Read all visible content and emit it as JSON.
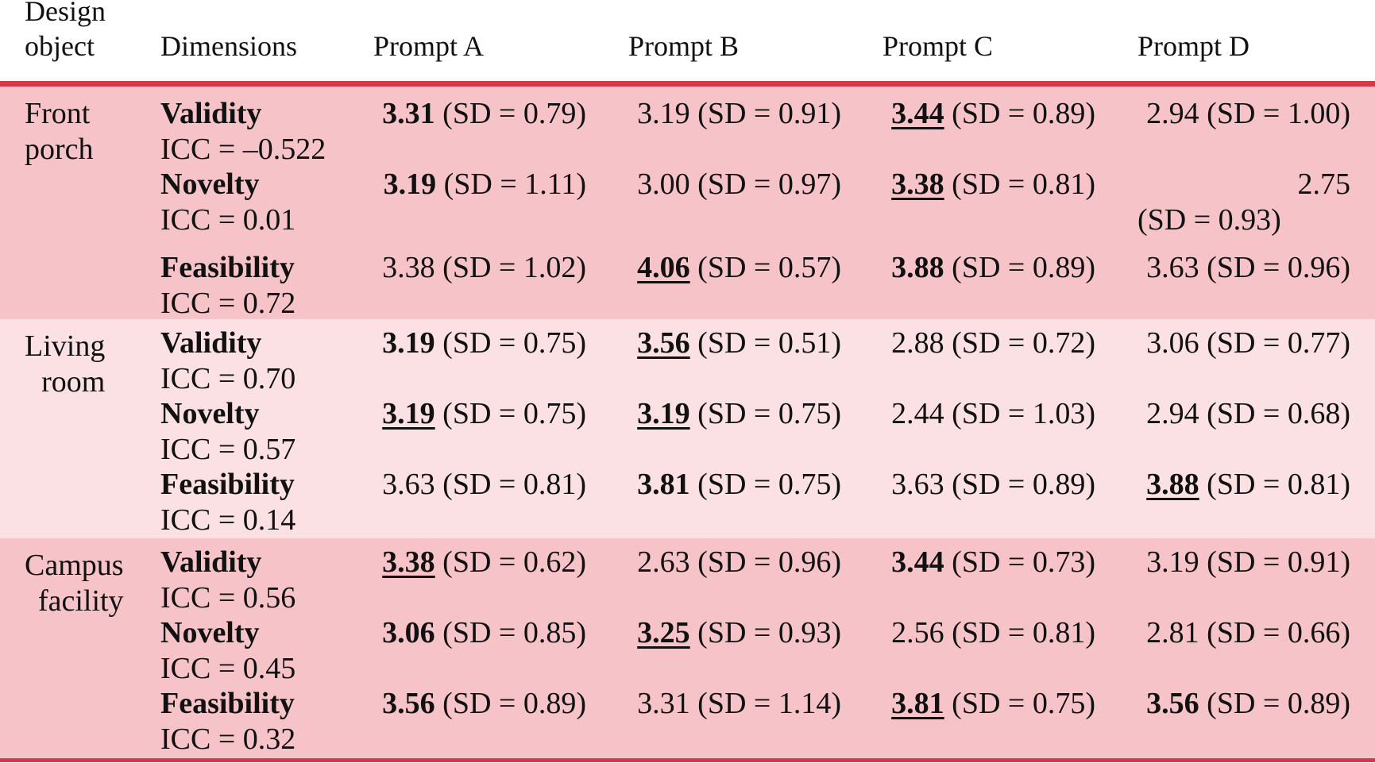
{
  "header": {
    "design_object": "Design\nobject",
    "dimensions": "Dimensions",
    "prompt_a": "Prompt A",
    "prompt_b": "Prompt B",
    "prompt_c": "Prompt C",
    "prompt_d": "Prompt D"
  },
  "colors": {
    "rule": "#d63a48",
    "band_dark": "#f6c3c8",
    "band_light": "#fbe1e3"
  },
  "groups": [
    {
      "object_line1": "Front",
      "object_line2": "porch",
      "rows": [
        {
          "dimension": "Validity",
          "icc": "ICC = –0.522",
          "cells": [
            {
              "mean": "3.31",
              "sd": "(SD = 0.79)",
              "bold": true,
              "underline": false
            },
            {
              "mean": "3.19",
              "sd": "(SD = 0.91)",
              "bold": false,
              "underline": false
            },
            {
              "mean": "3.44",
              "sd": "(SD = 0.89)",
              "bold": true,
              "underline": true
            },
            {
              "mean": "2.94",
              "sd": "(SD = 1.00)",
              "bold": false,
              "underline": false
            }
          ]
        },
        {
          "dimension": "Novelty",
          "icc": "ICC = 0.01",
          "cells": [
            {
              "mean": "3.19",
              "sd": "(SD = 1.11)",
              "bold": true,
              "underline": false
            },
            {
              "mean": "3.00",
              "sd": "(SD = 0.97)",
              "bold": false,
              "underline": false
            },
            {
              "mean": "3.38",
              "sd": "(SD = 0.81)",
              "bold": true,
              "underline": true
            },
            {
              "mean": "2.75",
              "sd": "(SD = 0.93)",
              "bold": false,
              "underline": false
            }
          ]
        },
        {
          "dimension": "Feasibility",
          "icc": "ICC = 0.72",
          "cells": [
            {
              "mean": "3.38",
              "sd": "(SD = 1.02)",
              "bold": false,
              "underline": false
            },
            {
              "mean": "4.06",
              "sd": "(SD = 0.57)",
              "bold": true,
              "underline": true
            },
            {
              "mean": "3.88",
              "sd": "(SD = 0.89)",
              "bold": true,
              "underline": false
            },
            {
              "mean": "3.63",
              "sd": "(SD = 0.96)",
              "bold": false,
              "underline": false
            }
          ]
        }
      ]
    },
    {
      "object_line1": "Living",
      "object_line2": "room",
      "rows": [
        {
          "dimension": "Validity",
          "icc": "ICC = 0.70",
          "cells": [
            {
              "mean": "3.19",
              "sd": "(SD = 0.75)",
              "bold": true,
              "underline": false
            },
            {
              "mean": "3.56",
              "sd": "(SD = 0.51)",
              "bold": true,
              "underline": true
            },
            {
              "mean": "2.88",
              "sd": "(SD = 0.72)",
              "bold": false,
              "underline": false
            },
            {
              "mean": "3.06",
              "sd": "(SD = 0.77)",
              "bold": false,
              "underline": false
            }
          ]
        },
        {
          "dimension": "Novelty",
          "icc": "ICC = 0.57",
          "cells": [
            {
              "mean": "3.19",
              "sd": "(SD = 0.75)",
              "bold": true,
              "underline": true
            },
            {
              "mean": "3.19",
              "sd": "(SD = 0.75)",
              "bold": true,
              "underline": true
            },
            {
              "mean": "2.44",
              "sd": "(SD = 1.03)",
              "bold": false,
              "underline": false
            },
            {
              "mean": "2.94",
              "sd": "(SD = 0.68)",
              "bold": false,
              "underline": false
            }
          ]
        },
        {
          "dimension": "Feasibility",
          "icc": "ICC = 0.14",
          "cells": [
            {
              "mean": "3.63",
              "sd": "(SD = 0.81)",
              "bold": false,
              "underline": false
            },
            {
              "mean": "3.81",
              "sd": "(SD = 0.75)",
              "bold": true,
              "underline": false
            },
            {
              "mean": "3.63",
              "sd": "(SD = 0.89)",
              "bold": false,
              "underline": false
            },
            {
              "mean": "3.88",
              "sd": "(SD = 0.81)",
              "bold": true,
              "underline": true
            }
          ]
        }
      ]
    },
    {
      "object_line1": "Campus",
      "object_line2": "facility",
      "rows": [
        {
          "dimension": "Validity",
          "icc": "ICC = 0.56",
          "cells": [
            {
              "mean": "3.38",
              "sd": "(SD = 0.62)",
              "bold": true,
              "underline": true
            },
            {
              "mean": "2.63",
              "sd": "(SD = 0.96)",
              "bold": false,
              "underline": false
            },
            {
              "mean": "3.44",
              "sd": "(SD = 0.73)",
              "bold": true,
              "underline": false
            },
            {
              "mean": "3.19",
              "sd": "(SD = 0.91)",
              "bold": false,
              "underline": false
            }
          ]
        },
        {
          "dimension": "Novelty",
          "icc": "ICC = 0.45",
          "cells": [
            {
              "mean": "3.06",
              "sd": "(SD = 0.85)",
              "bold": true,
              "underline": false
            },
            {
              "mean": "3.25",
              "sd": "(SD = 0.93)",
              "bold": true,
              "underline": true
            },
            {
              "mean": "2.56",
              "sd": "(SD = 0.81)",
              "bold": false,
              "underline": false
            },
            {
              "mean": "2.81",
              "sd": "(SD = 0.66)",
              "bold": false,
              "underline": false
            }
          ]
        },
        {
          "dimension": "Feasibility",
          "icc": "ICC = 0.32",
          "cells": [
            {
              "mean": "3.56",
              "sd": "(SD = 0.89)",
              "bold": true,
              "underline": false
            },
            {
              "mean": "3.31",
              "sd": "(SD = 1.14)",
              "bold": false,
              "underline": false
            },
            {
              "mean": "3.81",
              "sd": "(SD = 0.75)",
              "bold": true,
              "underline": true
            },
            {
              "mean": "3.56",
              "sd": "(SD = 0.89)",
              "bold": true,
              "underline": false
            }
          ]
        }
      ]
    }
  ]
}
